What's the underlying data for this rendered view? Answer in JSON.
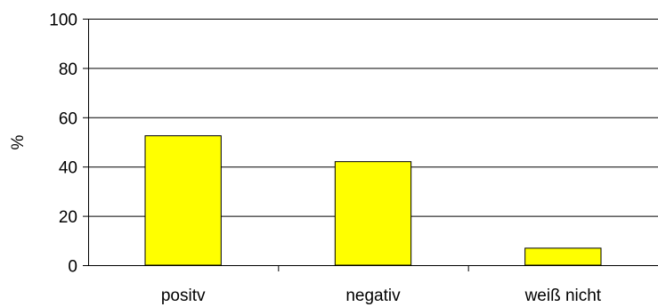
{
  "chart_data": {
    "type": "bar",
    "categories": [
      "positv",
      "negativ",
      "weiß nicht"
    ],
    "values": [
      52.5,
      42,
      6.9
    ],
    "title": "",
    "xlabel": "",
    "ylabel": "%",
    "ylim": [
      0,
      100
    ],
    "yticks": [
      "0",
      "20",
      "40",
      "60",
      "80",
      "100"
    ],
    "grid": true,
    "legend": "none",
    "colors": {
      "bar_fill": "#ffff00",
      "bar_stroke": "#000000",
      "gridline": "#000000",
      "axis": "#000000",
      "text": "#000000"
    }
  }
}
